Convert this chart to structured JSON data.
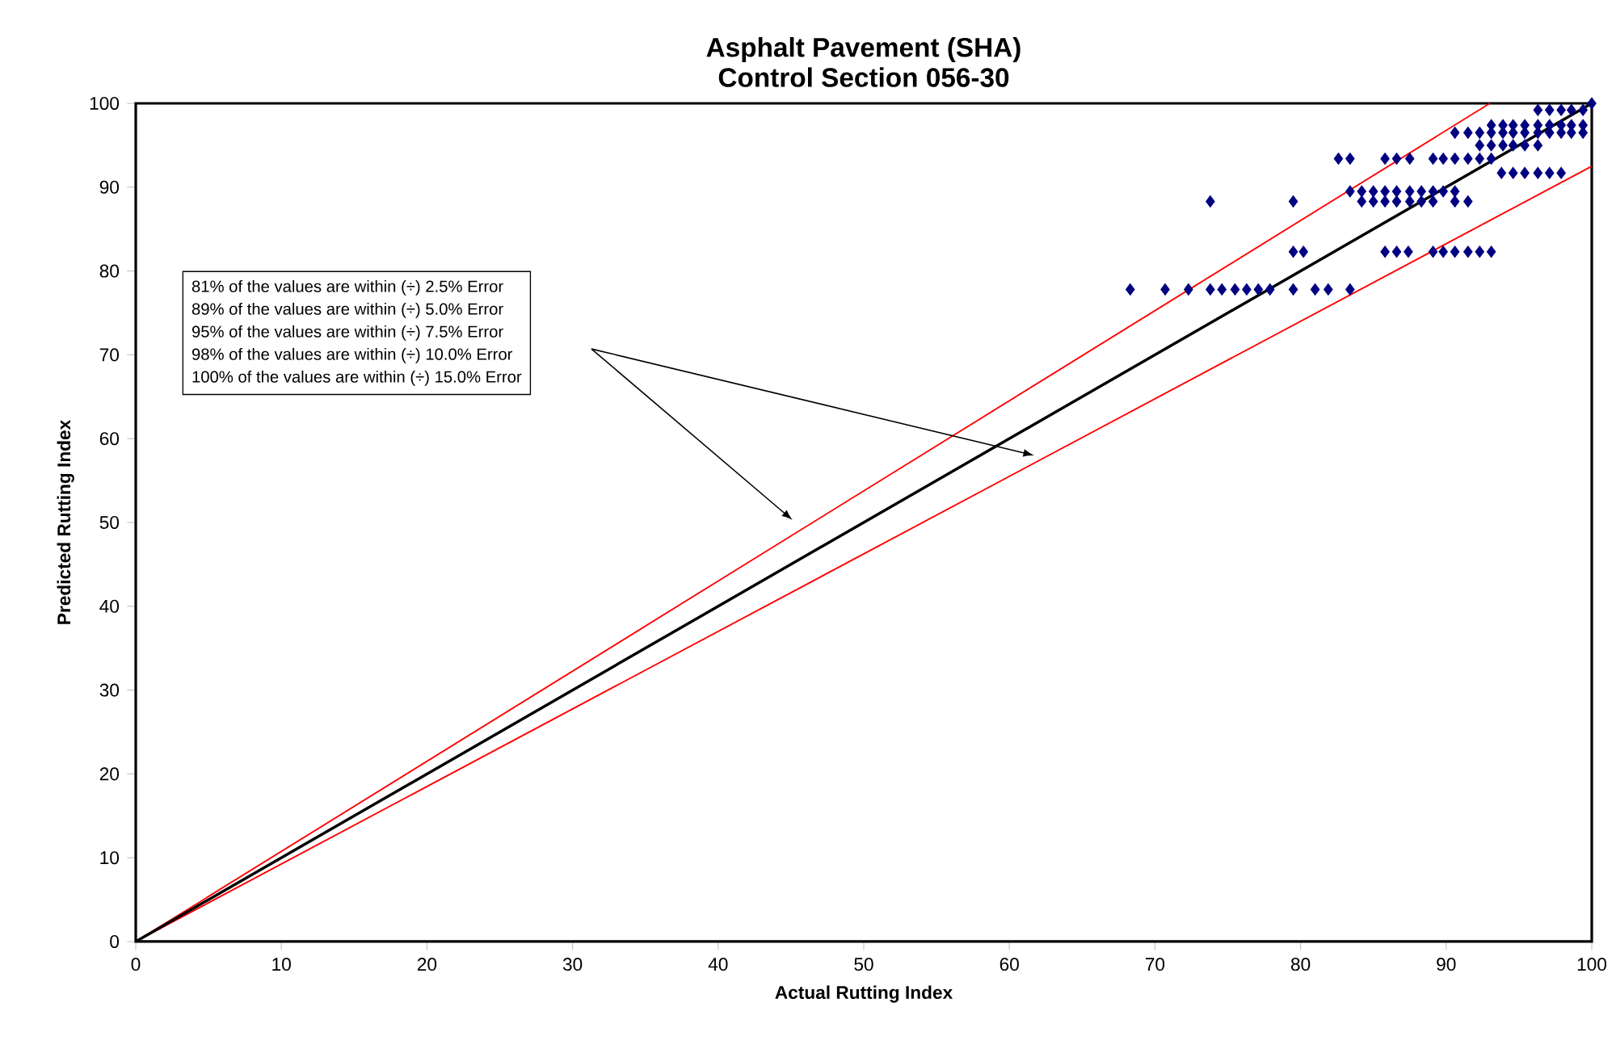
{
  "chart_data": {
    "type": "scatter",
    "title": "Asphalt Pavement (SHA)",
    "subtitle": "Control Section 056-30",
    "xlabel": "Actual Rutting Index",
    "ylabel": "Predicted Rutting Index",
    "xlim": [
      0,
      100
    ],
    "ylim": [
      0,
      100
    ],
    "xticks": [
      0,
      10,
      20,
      30,
      40,
      50,
      60,
      70,
      80,
      90,
      100
    ],
    "yticks": [
      0,
      10,
      20,
      30,
      40,
      50,
      60,
      70,
      80,
      90,
      100
    ],
    "grid": false,
    "marker": "diamond",
    "annotations": [
      "81% of the values are within (÷)   2.5% Error",
      "89% of the values are within (÷)   5.0% Error",
      "95% of the values are within (÷)   7.5% Error",
      "98% of the values are within (÷) 10.0% Error",
      "100% of the values are within (÷) 15.0% Error"
    ],
    "series": [
      {
        "color": "#000080",
        "x": [
          68.3,
          70.7,
          72.3,
          73.8,
          74.6,
          75.5,
          76.3,
          77.1,
          77.9,
          79.5,
          81.0,
          81.9,
          83.4,
          79.5,
          80.2,
          85.8,
          86.6,
          87.4,
          89.1,
          89.8,
          90.6,
          91.5,
          92.3,
          93.1,
          73.8,
          79.5,
          84.2,
          85.0,
          85.8,
          86.6,
          87.5,
          88.3,
          89.1,
          90.6,
          91.5,
          83.4,
          84.2,
          85.0,
          85.8,
          86.6,
          87.5,
          88.3,
          89.1,
          89.8,
          90.6,
          82.6,
          83.4,
          85.8,
          86.6,
          87.5,
          89.1,
          89.8,
          90.6,
          91.5,
          92.3,
          93.1,
          93.8,
          94.6,
          95.4,
          96.3,
          97.1,
          97.9,
          92.3,
          93.1,
          93.9,
          94.6,
          95.4,
          96.3,
          90.6,
          91.5,
          92.3,
          93.1,
          93.9,
          94.6,
          95.4,
          96.3,
          97.1,
          97.9,
          98.6,
          99.4,
          93.1,
          93.9,
          94.6,
          95.4,
          96.3,
          97.1,
          97.9,
          98.6,
          99.4,
          96.3,
          97.1,
          97.9,
          98.6,
          99.4,
          100
        ],
        "values": [
          77.8,
          77.8,
          77.8,
          77.8,
          77.8,
          77.8,
          77.8,
          77.8,
          77.8,
          77.8,
          77.8,
          77.8,
          77.8,
          82.3,
          82.3,
          82.3,
          82.3,
          82.3,
          82.3,
          82.3,
          82.3,
          82.3,
          82.3,
          82.3,
          88.3,
          88.3,
          88.3,
          88.3,
          88.3,
          88.3,
          88.3,
          88.3,
          88.3,
          88.3,
          88.3,
          89.5,
          89.5,
          89.5,
          89.5,
          89.5,
          89.5,
          89.5,
          89.5,
          89.5,
          89.5,
          93.4,
          93.4,
          93.4,
          93.4,
          93.4,
          93.4,
          93.4,
          93.4,
          93.4,
          93.4,
          93.4,
          91.7,
          91.7,
          91.7,
          91.7,
          91.7,
          91.7,
          95.0,
          95.0,
          95.0,
          95.0,
          95.0,
          95.0,
          96.5,
          96.5,
          96.5,
          96.5,
          96.5,
          96.5,
          96.5,
          96.5,
          96.5,
          96.5,
          96.5,
          96.5,
          97.4,
          97.4,
          97.4,
          97.4,
          97.4,
          97.4,
          97.4,
          97.4,
          97.4,
          99.2,
          99.2,
          99.2,
          99.2,
          99.2,
          100
        ]
      },
      {
        "type": "line",
        "marker": "none",
        "color": "#ff0000",
        "x": [
          0,
          93
        ],
        "values": [
          0,
          100
        ]
      },
      {
        "type": "line",
        "marker": "none",
        "color": "#ff0000",
        "x": [
          0,
          100
        ],
        "values": [
          0,
          92.5
        ]
      },
      {
        "type": "line",
        "marker": "none",
        "color": "#000000",
        "x": [
          0,
          100
        ],
        "values": [
          0,
          100
        ]
      }
    ]
  }
}
